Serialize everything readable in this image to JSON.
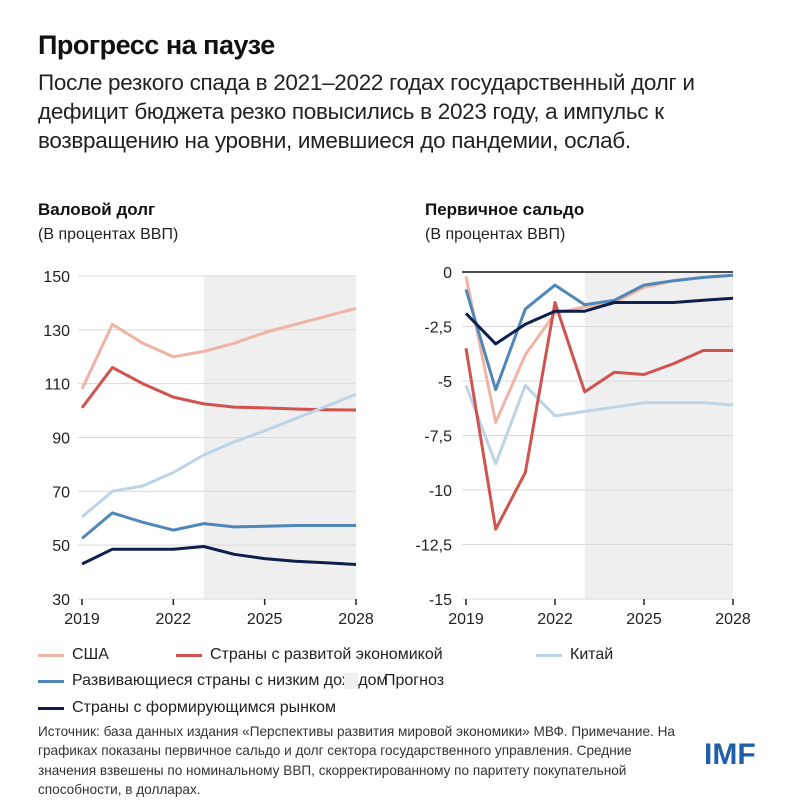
{
  "header": {
    "title": "Прогресс на паузе",
    "subtitle": "После резкого спада в 2021–2022 годах государственный долг и дефицит бюджета резко повысились в 2023 году, а импульс к возвращению на уровни, имевшиеся до пандемии, ослаб."
  },
  "colors": {
    "us": "#f0b4a4",
    "advanced": "#d0534f",
    "china": "#bcd4e6",
    "lidc": "#4f87b8",
    "em": "#0e1f4d",
    "forecast": "#efefef",
    "grid": "#d9d9d9",
    "brand": "#1f5ea8"
  },
  "chart_data": [
    {
      "type": "line",
      "title": "Валовой долг",
      "subtitle": "(В процентах ВВП)",
      "x": [
        2019,
        2020,
        2021,
        2022,
        2023,
        2024,
        2025,
        2026,
        2027,
        2028
      ],
      "xticks": [
        "2019",
        "2022",
        "2025",
        "2028"
      ],
      "yticks": [
        "150",
        "130",
        "110",
        "90",
        "70",
        "50",
        "30"
      ],
      "ylim": [
        30,
        150
      ],
      "forecast_from": 2023,
      "grid": true,
      "series": [
        {
          "key": "us",
          "name": "США",
          "values": [
            108,
            132,
            125,
            120,
            122,
            125,
            129,
            132,
            135,
            138
          ]
        },
        {
          "key": "advanced",
          "name": "Страны с развитой экономикой",
          "values": [
            101,
            116,
            110,
            105,
            102.5,
            101.3,
            101,
            100.6,
            100.3,
            100.2
          ]
        },
        {
          "key": "china",
          "name": "Китай",
          "values": [
            60.5,
            70,
            72,
            77,
            83.5,
            88.4,
            92.5,
            97,
            101.5,
            106
          ]
        },
        {
          "key": "lidc",
          "name": "Развивающиеся страны с низким доходом",
          "values": [
            52.5,
            62,
            58.5,
            55.6,
            58,
            56.8,
            57,
            57.3,
            57.3,
            57.3
          ]
        },
        {
          "key": "em",
          "name": "Страны с формирующимся рынком",
          "values": [
            43,
            48.5,
            48.5,
            48.5,
            49.5,
            46.6,
            45,
            44,
            43.5,
            42.8
          ]
        }
      ]
    },
    {
      "type": "line",
      "title": "Первичное сальдо",
      "subtitle": "(В процентах ВВП)",
      "x": [
        2019,
        2020,
        2021,
        2022,
        2023,
        2024,
        2025,
        2026,
        2027,
        2028
      ],
      "xticks": [
        "2019",
        "2022",
        "2025",
        "2028"
      ],
      "yticks": [
        "0",
        "-2,5",
        "-5",
        "-7,5",
        "-10",
        "-12,5",
        "-15"
      ],
      "ylim": [
        -15,
        0
      ],
      "forecast_from": 2023,
      "grid": true,
      "series": [
        {
          "key": "us",
          "name": "США",
          "values": [
            -0.2,
            -6.9,
            -3.8,
            -1.9,
            -1.6,
            -1.4,
            -0.7,
            -0.4,
            -0.25,
            -0.15
          ]
        },
        {
          "key": "china",
          "name": "Китай",
          "values": [
            -5.2,
            -8.8,
            -5.2,
            -6.6,
            -6.4,
            -6.2,
            -6.0,
            -6.0,
            -6.0,
            -6.1
          ]
        },
        {
          "key": "advanced",
          "name": "Страны с развитой экономикой",
          "values": [
            -3.5,
            -11.8,
            -9.2,
            -1.4,
            -5.5,
            -4.6,
            -4.7,
            -4.2,
            -3.6,
            -3.6
          ]
        },
        {
          "key": "lidc",
          "name": "Развивающиеся страны с низким доходом",
          "values": [
            -0.8,
            -5.4,
            -1.7,
            -0.6,
            -1.5,
            -1.3,
            -0.6,
            -0.4,
            -0.25,
            -0.15
          ]
        },
        {
          "key": "em",
          "name": "Страны с формирующимся рынком",
          "values": [
            -1.9,
            -3.3,
            -2.4,
            -1.8,
            -1.8,
            -1.4,
            -1.4,
            -1.4,
            -1.3,
            -1.2
          ]
        }
      ]
    }
  ],
  "legend": {
    "us": "США",
    "advanced": "Страны с развитой экономикой",
    "china": "Китай",
    "lidc": "Развивающиеся страны с низким доходом",
    "forecast": "Прогноз",
    "em": "Страны с формирующимся рынком"
  },
  "footer": {
    "text": "Источник: база данных издания «Перспективы развития мировой экономики» МВФ. Примечание. На графиках показаны первичное сальдо и долг сектора государственного управления. Средние значения взвешены по номинальному ВВП, скорректированному по паритету покупательной способности, в долларах."
  },
  "logo": "IMF"
}
